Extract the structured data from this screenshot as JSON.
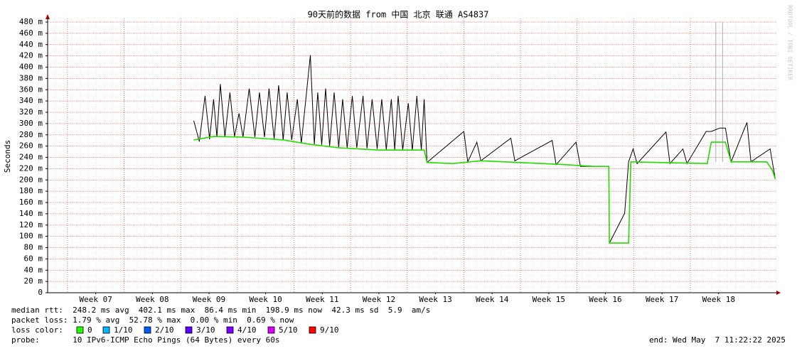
{
  "chart_data": {
    "type": "line",
    "title": "90天前的数据 from 中国 北京 联通 AS4837",
    "y_label": "Seconds",
    "watermark": "RRDTOOL / TOBI OETIKER",
    "xlim": [
      6.15,
      19.02
    ],
    "xticks": [
      {
        "value": 7,
        "label": "Week 07"
      },
      {
        "value": 8,
        "label": "Week 08"
      },
      {
        "value": 9,
        "label": "Week 09"
      },
      {
        "value": 10,
        "label": "Week 10"
      },
      {
        "value": 11,
        "label": "Week 11"
      },
      {
        "value": 12,
        "label": "Week 12"
      },
      {
        "value": 13,
        "label": "Week 13"
      },
      {
        "value": 14,
        "label": "Week 14"
      },
      {
        "value": 15,
        "label": "Week 15"
      },
      {
        "value": 16,
        "label": "Week 16"
      },
      {
        "value": 17,
        "label": "Week 17"
      },
      {
        "value": 18,
        "label": "Week 18"
      }
    ],
    "ylim": [
      0,
      480
    ],
    "yticks": [
      0,
      {
        "value": 20,
        "label": "20 m"
      },
      {
        "value": 40,
        "label": "40 m"
      },
      {
        "value": 60,
        "label": "60 m"
      },
      {
        "value": 80,
        "label": "80 m"
      },
      {
        "value": 100,
        "label": "100 m"
      },
      {
        "value": 120,
        "label": "120 m"
      },
      {
        "value": 140,
        "label": "140 m"
      },
      {
        "value": 160,
        "label": "160 m"
      },
      {
        "value": 180,
        "label": "180 m"
      },
      {
        "value": 200,
        "label": "200 m"
      },
      {
        "value": 220,
        "label": "220 m"
      },
      {
        "value": 240,
        "label": "240 m"
      },
      {
        "value": 260,
        "label": "260 m"
      },
      {
        "value": 280,
        "label": "280 m"
      },
      {
        "value": 300,
        "label": "300 m"
      },
      {
        "value": 320,
        "label": "320 m"
      },
      {
        "value": 340,
        "label": "340 m"
      },
      {
        "value": 360,
        "label": "360 m"
      },
      {
        "value": 380,
        "label": "380 m"
      },
      {
        "value": 400,
        "label": "400 m"
      },
      {
        "value": 420,
        "label": "420 m"
      },
      {
        "value": 440,
        "label": "440 m"
      },
      {
        "value": 460,
        "label": "460 m"
      },
      {
        "value": 480,
        "label": "480 m"
      }
    ],
    "grid": true,
    "series": [
      {
        "color": "#aaaaaa",
        "x": [
          17.95,
          17.95,
          null,
          18.07,
          18.07
        ],
        "values": [
          232,
          480,
          null,
          232,
          480
        ]
      },
      {
        "color": "#000000",
        "x": [
          8.73,
          8.83,
          8.93,
          9.01,
          9.08,
          9.14,
          9.2,
          9.28,
          9.37,
          9.45,
          9.53,
          9.6,
          9.71,
          9.81,
          9.89,
          9.98,
          10.06,
          10.15,
          10.23,
          10.31,
          10.38,
          10.46,
          10.56,
          10.63,
          10.79,
          10.86,
          10.92,
          10.99,
          11.06,
          11.13,
          11.21,
          11.29,
          11.36,
          11.44,
          11.53,
          11.61,
          11.72,
          11.79,
          11.88,
          11.97,
          12.05,
          12.13,
          12.22,
          12.28,
          12.34,
          12.42,
          12.52,
          12.59,
          12.67,
          12.75,
          12.8,
          12.85,
          13.5,
          13.57,
          13.73,
          13.8,
          14.33,
          14.4,
          15.06,
          15.13,
          15.48,
          15.56,
          16.06,
          16.07,
          16.34,
          16.41,
          16.49,
          16.56,
          17.07,
          17.14,
          17.37,
          17.44,
          17.78,
          17.87,
          18.02,
          18.12,
          18.22,
          18.5,
          18.57,
          18.91,
          19.0
        ],
        "values": [
          305,
          268,
          349,
          272,
          343,
          276,
          370,
          276,
          355,
          277,
          318,
          276,
          362,
          276,
          355,
          276,
          362,
          272,
          368,
          271,
          355,
          271,
          343,
          265,
          421,
          263,
          355,
          262,
          362,
          260,
          355,
          258,
          343,
          257,
          349,
          257,
          349,
          256,
          343,
          255,
          343,
          254,
          343,
          253,
          349,
          253,
          336,
          252,
          349,
          253,
          343,
          231,
          286,
          232,
          267,
          234,
          274,
          234,
          270,
          227,
          267,
          224,
          224,
          88,
          141,
          232,
          255,
          229,
          285,
          229,
          255,
          229,
          286,
          286,
          292,
          292,
          232,
          302,
          232,
          255,
          202
        ]
      },
      {
        "color": "#22dd00",
        "x": [
          8.73,
          9.08,
          9.6,
          10.31,
          10.79,
          11.29,
          12.0,
          12.8,
          12.85,
          13.3,
          13.8,
          14.9,
          15.3,
          15.8,
          16.06,
          16.07,
          16.41,
          16.45,
          17.8,
          17.87,
          18.12,
          18.22,
          18.85,
          18.95,
          19.0
        ],
        "values": [
          271,
          277,
          276,
          271,
          263,
          257,
          253,
          253,
          231,
          229,
          234,
          229,
          227,
          224,
          224,
          88,
          88,
          232,
          229,
          267,
          267,
          232,
          232,
          217,
          202
        ]
      }
    ],
    "legend": {
      "median": "median rtt:  248.2 ms avg  402.1 ms max  86.4 ms min  198.9 ms now  42.3 ms sd  5.9  am/s",
      "loss": "packet loss: 1.79 % avg  52.78 % max  0.00 % min  0.69 % now",
      "loss_color_label": "loss color:",
      "loss_colors": [
        {
          "label": "0",
          "color": "#26ff00"
        },
        {
          "label": "1/10",
          "color": "#00b8ff"
        },
        {
          "label": "2/10",
          "color": "#0059ff"
        },
        {
          "label": "3/10",
          "color": "#5e00ff"
        },
        {
          "label": "4/10",
          "color": "#7e00ff"
        },
        {
          "label": "5/10",
          "color": "#dd00ff"
        },
        {
          "label": "9/10",
          "color": "#ff0000"
        }
      ],
      "probe": "probe:       10 IPv6-ICMP Echo Pings (64 Bytes) every 60s",
      "end": "end: Wed May  7 11:22:22 2025"
    }
  }
}
